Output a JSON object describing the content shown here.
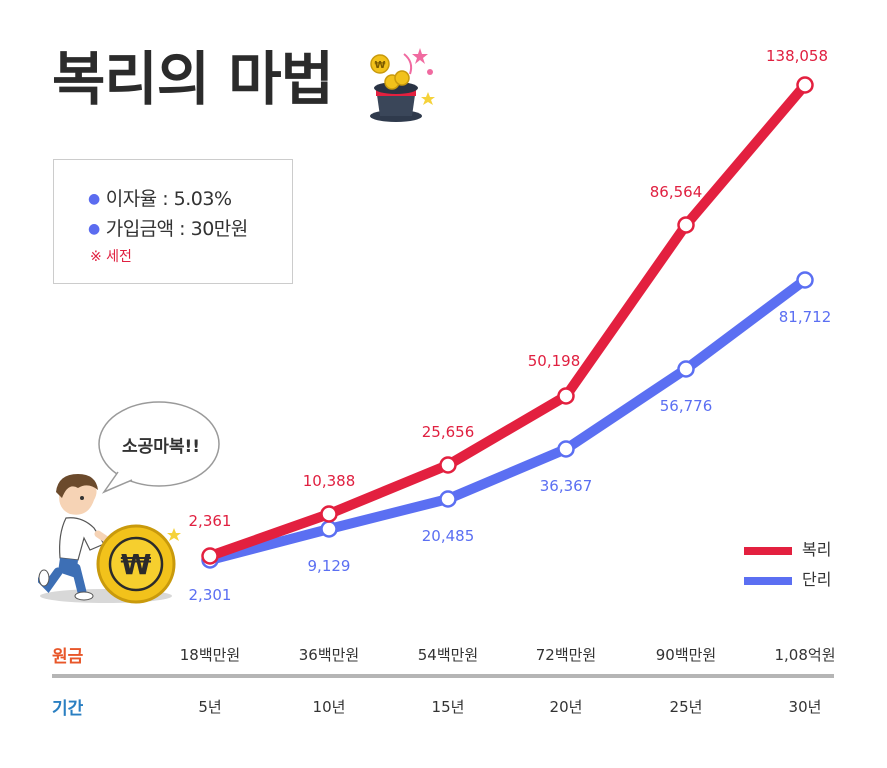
{
  "title": "복리의 마법",
  "info": {
    "rate": "이자율 : 5.03%",
    "amount": "가입금액 : 30만원",
    "note": "※ 세전"
  },
  "bubble": "소공마복!!",
  "icons": [
    "magic-hat-icon",
    "won-coin-icon",
    "sparkle-icon",
    "boy-pushing-coin-illustration"
  ],
  "colors": {
    "compound": "#e3203f",
    "simple": "#5b6ff2",
    "label_compound": "#e02040",
    "label_simple": "#5b6ff2",
    "principal_label": "#e8572a",
    "period_label": "#2a7fc2"
  },
  "labels": {
    "principal": "원금",
    "period": "기간"
  },
  "principal": [
    "18백만원",
    "36백만원",
    "54백만원",
    "72백만원",
    "90백만원",
    "1,08억원"
  ],
  "periods": [
    "5년",
    "10년",
    "15년",
    "20년",
    "25년",
    "30년"
  ],
  "legend": {
    "compound": "복리",
    "simple": "단리"
  },
  "chart_data": {
    "type": "line",
    "categories": [
      "5년",
      "10년",
      "15년",
      "20년",
      "25년",
      "30년"
    ],
    "series": [
      {
        "name": "복리",
        "values": [
          2361,
          10388,
          25656,
          50198,
          86564,
          138058
        ],
        "labels": [
          "2,361",
          "10,388",
          "25,656",
          "50,198",
          "86,564",
          "138,058"
        ]
      },
      {
        "name": "단리",
        "values": [
          2301,
          9129,
          20485,
          36367,
          56776,
          81712
        ],
        "labels": [
          "2,301",
          "9,129",
          "20,485",
          "36,367",
          "56,776",
          "81,712"
        ]
      }
    ],
    "legend_position": "bottom-right",
    "grid": false
  }
}
